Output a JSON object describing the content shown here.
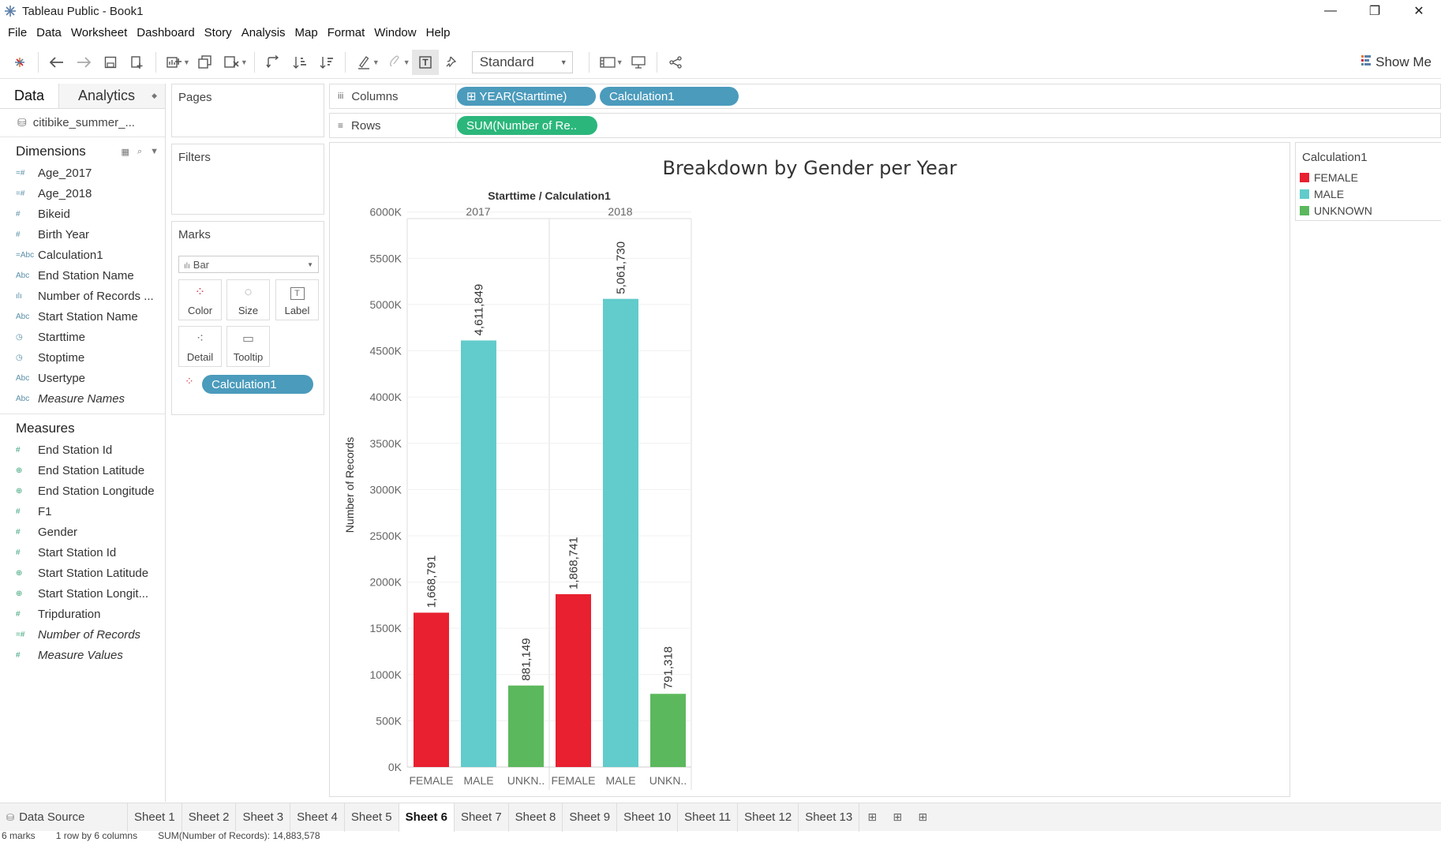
{
  "window": {
    "title": "Tableau Public - Book1",
    "minimize": "—",
    "restore": "❐",
    "close": "✕"
  },
  "menu": [
    "File",
    "Data",
    "Worksheet",
    "Dashboard",
    "Story",
    "Analysis",
    "Map",
    "Format",
    "Window",
    "Help"
  ],
  "toolbar": {
    "fit": "Standard",
    "show_me": "Show Me"
  },
  "data_pane": {
    "tab_data": "Data",
    "tab_analytics": "Analytics",
    "datasource": "citibike_summer_...",
    "dimensions_label": "Dimensions",
    "measures_label": "Measures",
    "dimensions": [
      {
        "icon": "=#",
        "label": "Age_2017"
      },
      {
        "icon": "=#",
        "label": "Age_2018"
      },
      {
        "icon": "#",
        "label": "Bikeid"
      },
      {
        "icon": "#",
        "label": "Birth Year"
      },
      {
        "icon": "=Abc",
        "label": "Calculation1"
      },
      {
        "icon": "Abc",
        "label": "End Station Name"
      },
      {
        "icon": "ılı",
        "label": "Number of Records ..."
      },
      {
        "icon": "Abc",
        "label": "Start Station Name"
      },
      {
        "icon": "◷",
        "label": "Starttime"
      },
      {
        "icon": "◷",
        "label": "Stoptime"
      },
      {
        "icon": "Abc",
        "label": "Usertype"
      },
      {
        "icon": "Abc",
        "label": "Measure Names"
      }
    ],
    "measures": [
      {
        "icon": "#",
        "label": "End Station Id"
      },
      {
        "icon": "⊕",
        "label": "End Station Latitude"
      },
      {
        "icon": "⊕",
        "label": "End Station Longitude"
      },
      {
        "icon": "#",
        "label": "F1"
      },
      {
        "icon": "#",
        "label": "Gender"
      },
      {
        "icon": "#",
        "label": "Start Station Id"
      },
      {
        "icon": "⊕",
        "label": "Start Station Latitude"
      },
      {
        "icon": "⊕",
        "label": "Start Station Longit..."
      },
      {
        "icon": "#",
        "label": "Tripduration"
      },
      {
        "icon": "=#",
        "label": "Number of Records"
      },
      {
        "icon": "#",
        "label": "Measure Values"
      }
    ]
  },
  "cards": {
    "pages": "Pages",
    "filters": "Filters",
    "marks": "Marks",
    "mark_type": "Bar",
    "mark_buttons": [
      {
        "label": "Color",
        "icon": "⁘"
      },
      {
        "label": "Size",
        "icon": "◌"
      },
      {
        "label": "Label",
        "icon": "T"
      },
      {
        "label": "Detail",
        "icon": "⁖"
      },
      {
        "label": "Tooltip",
        "icon": "▭"
      }
    ],
    "color_pill": "Calculation1"
  },
  "shelves": {
    "columns_label": "Columns",
    "rows_label": "Rows",
    "columns_pills": [
      "⊞  YEAR(Starttime)",
      "Calculation1"
    ],
    "rows_pills": [
      "SUM(Number of Re.."
    ]
  },
  "chart_data": {
    "type": "bar",
    "title": "Breakdown by Gender per Year",
    "header": "Starttime / Calculation1",
    "ylabel": "Number of Records",
    "ylim": [
      0,
      6100000
    ],
    "yticks": [
      0,
      500000,
      1000000,
      1500000,
      2000000,
      2500000,
      3000000,
      3500000,
      4000000,
      4500000,
      5000000,
      5500000,
      6000000
    ],
    "ytick_labels": [
      "0K",
      "500K",
      "1000K",
      "1500K",
      "2000K",
      "2500K",
      "3000K",
      "3500K",
      "4000K",
      "4500K",
      "5000K",
      "5500K",
      "6000K"
    ],
    "groups": [
      {
        "year": "2017",
        "bars": [
          {
            "category": "FEMALE",
            "label": "FEMALE",
            "value": 1668791,
            "text": "1,668,791"
          },
          {
            "category": "MALE",
            "label": "MALE",
            "value": 4611849,
            "text": "4,611,849"
          },
          {
            "category": "UNKNOWN",
            "label": "UNKN..",
            "value": 881149,
            "text": "881,149"
          }
        ]
      },
      {
        "year": "2018",
        "bars": [
          {
            "category": "FEMALE",
            "label": "FEMALE",
            "value": 1868741,
            "text": "1,868,741"
          },
          {
            "category": "MALE",
            "label": "MALE",
            "value": 5061730,
            "text": "5,061,730"
          },
          {
            "category": "UNKNOWN",
            "label": "UNKN..",
            "value": 791318,
            "text": "791,318"
          }
        ]
      }
    ],
    "colors": {
      "FEMALE": "#e8202f",
      "MALE": "#62cbcb",
      "UNKNOWN": "#5cb85c"
    }
  },
  "legend": {
    "title": "Calculation1",
    "items": [
      {
        "label": "FEMALE",
        "color": "#e8202f"
      },
      {
        "label": "MALE",
        "color": "#62cbcb"
      },
      {
        "label": "UNKNOWN",
        "color": "#5cb85c"
      }
    ]
  },
  "sheets": {
    "datasource": "Data Source",
    "tabs": [
      "Sheet 1",
      "Sheet 2",
      "Sheet 3",
      "Sheet 4",
      "Sheet 5",
      "Sheet 6",
      "Sheet 7",
      "Sheet 8",
      "Sheet 9",
      "Sheet 10",
      "Sheet 11",
      "Sheet 12",
      "Sheet 13"
    ],
    "active": "Sheet 6"
  },
  "status": {
    "marks": "6 marks",
    "dims": "1 row by 6 columns",
    "sum": "SUM(Number of Records): 14,883,578"
  }
}
